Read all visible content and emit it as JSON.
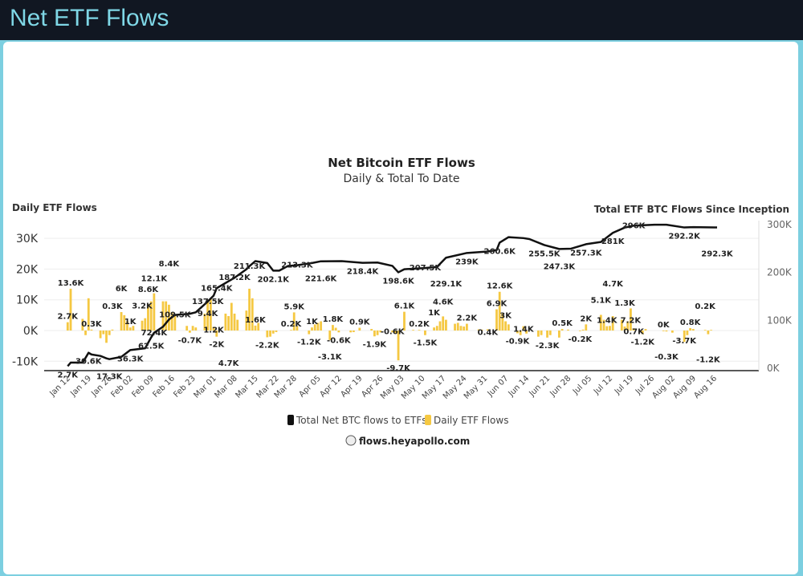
{
  "header": {
    "title": "Net ETF Flows"
  },
  "chart_data": {
    "type": "bar+line",
    "title": "Net Bitcoin ETF Flows",
    "subtitle": "Daily & Total To Date",
    "ylabel_left": "Daily ETF Flows",
    "ylabel_right": "Total ETF BTC Flows Since Inception",
    "ylim_left": [
      -10,
      30
    ],
    "ylim_right": [
      0,
      300
    ],
    "yticks_left": [
      "-10K",
      "0K",
      "10K",
      "20K",
      "30K"
    ],
    "yticks_right": [
      "0K",
      "100K",
      "200K",
      "300K"
    ],
    "xticks": [
      "Jan 12",
      "Jan 19",
      "Jan 26",
      "Feb 02",
      "Feb 09",
      "Feb 16",
      "Feb 23",
      "Mar 01",
      "Mar 08",
      "Mar 15",
      "Mar 22",
      "Mar 28",
      "Apr 05",
      "Apr 12",
      "Apr 19",
      "Apr 26",
      "May 03",
      "May 10",
      "May 17",
      "May 24",
      "May 31",
      "Jun 07",
      "Jun 14",
      "Jun 21",
      "Jun 28",
      "Jul 05",
      "Jul 12",
      "Jul 19",
      "Jul 26",
      "Aug 02",
      "Aug 09",
      "Aug 16"
    ],
    "grid": true,
    "legend_position": "bottom",
    "colors": {
      "total": "#111111",
      "daily": "#f5c842"
    },
    "series": [
      {
        "name": "Total Net BTC flows to ETFs",
        "unit": "K BTC",
        "points": [
          [
            "2024-01-11",
            2.7
          ],
          [
            "2024-01-12",
            10
          ],
          [
            "2024-01-16",
            10
          ],
          [
            "2024-01-17",
            20
          ],
          [
            "2024-01-18",
            30.6
          ],
          [
            "2024-01-19",
            27
          ],
          [
            "2024-01-22",
            24
          ],
          [
            "2024-01-24",
            19
          ],
          [
            "2024-01-25",
            17.3
          ],
          [
            "2024-01-29",
            22
          ],
          [
            "2024-02-01",
            36.3
          ],
          [
            "2024-02-06",
            40
          ],
          [
            "2024-02-08",
            62.5
          ],
          [
            "2024-02-09",
            72.4
          ],
          [
            "2024-02-12",
            85
          ],
          [
            "2024-02-14",
            100
          ],
          [
            "2024-02-16",
            109.5
          ],
          [
            "2024-02-21",
            112
          ],
          [
            "2024-02-23",
            115
          ],
          [
            "2024-02-27",
            137.5
          ],
          [
            "2024-02-29",
            150
          ],
          [
            "2024-03-01",
            165.4
          ],
          [
            "2024-03-05",
            180
          ],
          [
            "2024-03-07",
            187.2
          ],
          [
            "2024-03-11",
            205
          ],
          [
            "2024-03-12",
            211.3
          ],
          [
            "2024-03-14",
            222
          ],
          [
            "2024-03-18",
            218
          ],
          [
            "2024-03-20",
            202.1
          ],
          [
            "2024-03-22",
            202
          ],
          [
            "2024-03-25",
            212
          ],
          [
            "2024-03-28",
            213.3
          ],
          [
            "2024-04-02",
            218
          ],
          [
            "2024-04-05",
            221.6
          ],
          [
            "2024-04-12",
            222
          ],
          [
            "2024-04-19",
            218.4
          ],
          [
            "2024-04-24",
            219
          ],
          [
            "2024-04-29",
            212
          ],
          [
            "2024-05-01",
            198.6
          ],
          [
            "2024-05-03",
            205
          ],
          [
            "2024-05-10",
            207.5
          ],
          [
            "2024-05-14",
            210
          ],
          [
            "2024-05-17",
            229.1
          ],
          [
            "2024-05-24",
            239
          ],
          [
            "2024-05-31",
            242
          ],
          [
            "2024-06-03",
            245
          ],
          [
            "2024-06-04",
            260.6
          ],
          [
            "2024-06-07",
            272
          ],
          [
            "2024-06-12",
            270
          ],
          [
            "2024-06-14",
            268
          ],
          [
            "2024-06-19",
            255.5
          ],
          [
            "2024-06-24",
            247.3
          ],
          [
            "2024-06-28",
            248
          ],
          [
            "2024-07-03",
            257.3
          ],
          [
            "2024-07-08",
            262
          ],
          [
            "2024-07-12",
            281
          ],
          [
            "2024-07-16",
            292
          ],
          [
            "2024-07-19",
            296
          ],
          [
            "2024-07-26",
            298
          ],
          [
            "2024-07-30",
            298
          ],
          [
            "2024-08-05",
            292.2
          ],
          [
            "2024-08-08",
            293
          ],
          [
            "2024-08-16",
            292.3
          ]
        ]
      },
      {
        "name": "Daily ETF Flows",
        "unit": "K BTC",
        "points": [
          [
            "2024-01-11",
            2.7
          ],
          [
            "2024-01-12",
            13.6
          ],
          [
            "2024-01-16",
            3.8
          ],
          [
            "2024-01-17",
            -1.5
          ],
          [
            "2024-01-18",
            10.5
          ],
          [
            "2024-01-19",
            0.3
          ],
          [
            "2024-01-22",
            -2.5
          ],
          [
            "2024-01-23",
            -1.2
          ],
          [
            "2024-01-24",
            -4
          ],
          [
            "2024-01-25",
            -1.5
          ],
          [
            "2024-01-26",
            0.3
          ],
          [
            "2024-01-29",
            6
          ],
          [
            "2024-01-30",
            5
          ],
          [
            "2024-01-31",
            3
          ],
          [
            "2024-02-01",
            1
          ],
          [
            "2024-02-02",
            1.5
          ],
          [
            "2024-02-05",
            3.2
          ],
          [
            "2024-02-06",
            4
          ],
          [
            "2024-02-07",
            8.6
          ],
          [
            "2024-02-08",
            9.5
          ],
          [
            "2024-02-09",
            12.1
          ],
          [
            "2024-02-12",
            9.5
          ],
          [
            "2024-02-13",
            9.5
          ],
          [
            "2024-02-14",
            8.4
          ],
          [
            "2024-02-15",
            6
          ],
          [
            "2024-02-16",
            5
          ],
          [
            "2024-02-20",
            1.5
          ],
          [
            "2024-02-21",
            -0.7
          ],
          [
            "2024-02-22",
            1.5
          ],
          [
            "2024-02-23",
            1
          ],
          [
            "2024-02-26",
            5.5
          ],
          [
            "2024-02-27",
            9.4
          ],
          [
            "2024-02-28",
            10.5
          ],
          [
            "2024-02-29",
            1.2
          ],
          [
            "2024-03-01",
            -2
          ],
          [
            "2024-03-04",
            5.5
          ],
          [
            "2024-03-05",
            4.7
          ],
          [
            "2024-03-06",
            9
          ],
          [
            "2024-03-07",
            5.5
          ],
          [
            "2024-03-08",
            3.5
          ],
          [
            "2024-03-11",
            6.5
          ],
          [
            "2024-03-12",
            13.6
          ],
          [
            "2024-03-13",
            10.5
          ],
          [
            "2024-03-14",
            1.6
          ],
          [
            "2024-03-15",
            2.5
          ],
          [
            "2024-03-18",
            -2.2
          ],
          [
            "2024-03-19",
            -2
          ],
          [
            "2024-03-20",
            -1
          ],
          [
            "2024-03-21",
            -0.5
          ],
          [
            "2024-03-26",
            0.2
          ],
          [
            "2024-03-27",
            5.9
          ],
          [
            "2024-03-28",
            1.5
          ],
          [
            "2024-04-01",
            -1.2
          ],
          [
            "2024-04-02",
            1
          ],
          [
            "2024-04-03",
            2
          ],
          [
            "2024-04-04",
            2.5
          ],
          [
            "2024-04-05",
            3
          ],
          [
            "2024-04-08",
            -3.1
          ],
          [
            "2024-04-09",
            1.8
          ],
          [
            "2024-04-10",
            0.9
          ],
          [
            "2024-04-11",
            -0.6
          ],
          [
            "2024-04-15",
            -0.6
          ],
          [
            "2024-04-16",
            -0.5
          ],
          [
            "2024-04-18",
            0.9
          ],
          [
            "2024-04-22",
            0.5
          ],
          [
            "2024-04-23",
            -1.9
          ],
          [
            "2024-04-24",
            -1.5
          ],
          [
            "2024-04-25",
            -0.6
          ],
          [
            "2024-04-29",
            -0.6
          ],
          [
            "2024-04-30",
            -1
          ],
          [
            "2024-05-01",
            -9.7
          ],
          [
            "2024-05-03",
            6.1
          ],
          [
            "2024-05-06",
            0.2
          ],
          [
            "2024-05-08",
            0.2
          ],
          [
            "2024-05-10",
            -1.5
          ],
          [
            "2024-05-13",
            1
          ],
          [
            "2024-05-14",
            1.5
          ],
          [
            "2024-05-15",
            3
          ],
          [
            "2024-05-16",
            4.6
          ],
          [
            "2024-05-17",
            3.5
          ],
          [
            "2024-05-20",
            2.2
          ],
          [
            "2024-05-21",
            2.5
          ],
          [
            "2024-05-22",
            1.5
          ],
          [
            "2024-05-23",
            1.3
          ],
          [
            "2024-05-24",
            2.2
          ],
          [
            "2024-05-28",
            0.4
          ],
          [
            "2024-05-29",
            0.3
          ],
          [
            "2024-05-31",
            0.4
          ],
          [
            "2024-06-03",
            6.9
          ],
          [
            "2024-06-04",
            12.6
          ],
          [
            "2024-06-05",
            5.5
          ],
          [
            "2024-06-06",
            3
          ],
          [
            "2024-06-07",
            2
          ],
          [
            "2024-06-10",
            -0.9
          ],
          [
            "2024-06-11",
            -1.5
          ],
          [
            "2024-06-12",
            1.4
          ],
          [
            "2024-06-13",
            -1
          ],
          [
            "2024-06-17",
            -2
          ],
          [
            "2024-06-18",
            -1.5
          ],
          [
            "2024-06-20",
            -2.3
          ],
          [
            "2024-06-21",
            -1.5
          ],
          [
            "2024-06-24",
            -2.3
          ],
          [
            "2024-06-25",
            0.5
          ],
          [
            "2024-06-27",
            0.3
          ],
          [
            "2024-07-01",
            -0.2
          ],
          [
            "2024-07-02",
            0.3
          ],
          [
            "2024-07-03",
            2
          ],
          [
            "2024-07-08",
            5.1
          ],
          [
            "2024-07-09",
            3.5
          ],
          [
            "2024-07-10",
            1.4
          ],
          [
            "2024-07-11",
            1.5
          ],
          [
            "2024-07-12",
            4.7
          ],
          [
            "2024-07-15",
            3.5
          ],
          [
            "2024-07-16",
            1.3
          ],
          [
            "2024-07-17",
            3
          ],
          [
            "2024-07-18",
            7.2
          ],
          [
            "2024-07-19",
            0.7
          ],
          [
            "2024-07-22",
            -1.2
          ],
          [
            "2024-07-23",
            0.5
          ],
          [
            "2024-07-29",
            0
          ],
          [
            "2024-07-30",
            -0.3
          ],
          [
            "2024-08-01",
            -0.7
          ],
          [
            "2024-08-05",
            -3.7
          ],
          [
            "2024-08-06",
            -1.5
          ],
          [
            "2024-08-07",
            0.8
          ],
          [
            "2024-08-08",
            0.5
          ],
          [
            "2024-08-12",
            0.2
          ],
          [
            "2024-08-13",
            -1.2
          ],
          [
            "2024-08-14",
            0.2
          ]
        ]
      }
    ],
    "labels_total": [
      [
        "2024-01-11",
        "2.7K"
      ],
      [
        "2024-01-18",
        "30.6K"
      ],
      [
        "2024-01-25",
        "17.3K"
      ],
      [
        "2024-02-01",
        "36.3K"
      ],
      [
        "2024-02-08",
        "62.5K"
      ],
      [
        "2024-02-09",
        "72.4K"
      ],
      [
        "2024-02-16",
        "109.5K"
      ],
      [
        "2024-02-27",
        "137.5K"
      ],
      [
        "2024-03-01",
        "165.4K"
      ],
      [
        "2024-03-07",
        "187.2K"
      ],
      [
        "2024-03-12",
        "211.3K"
      ],
      [
        "2024-03-20",
        "202.1K"
      ],
      [
        "2024-03-28",
        "213.3K"
      ],
      [
        "2024-04-05",
        "221.6K"
      ],
      [
        "2024-04-19",
        "218.4K"
      ],
      [
        "2024-05-01",
        "198.6K"
      ],
      [
        "2024-05-10",
        "207.5K"
      ],
      [
        "2024-05-17",
        "229.1K"
      ],
      [
        "2024-05-24",
        "239K"
      ],
      [
        "2024-06-04",
        "260.6K"
      ],
      [
        "2024-06-19",
        "255.5K"
      ],
      [
        "2024-06-24",
        "247.3K"
      ],
      [
        "2024-07-03",
        "257.3K"
      ],
      [
        "2024-07-12",
        "281K"
      ],
      [
        "2024-07-19",
        "296K"
      ],
      [
        "2024-08-05",
        "292.2K"
      ],
      [
        "2024-08-16",
        "292.3K"
      ]
    ],
    "labels_daily": [
      [
        "2024-01-11",
        "2.7K"
      ],
      [
        "2024-01-12",
        "13.6K"
      ],
      [
        "2024-01-19",
        "0.3K"
      ],
      [
        "2024-01-26",
        "0.3K"
      ],
      [
        "2024-01-29",
        "6K"
      ],
      [
        "2024-02-01",
        "1K"
      ],
      [
        "2024-02-05",
        "3.2K"
      ],
      [
        "2024-02-07",
        "8.6K"
      ],
      [
        "2024-02-09",
        "12.1K"
      ],
      [
        "2024-02-14",
        "8.4K"
      ],
      [
        "2024-02-21",
        "-0.7K"
      ],
      [
        "2024-02-27",
        "9.4K"
      ],
      [
        "2024-02-29",
        "1.2K"
      ],
      [
        "2024-03-01",
        "-2K"
      ],
      [
        "2024-03-05",
        "4.7K"
      ],
      [
        "2024-03-14",
        "1.6K"
      ],
      [
        "2024-03-18",
        "-2.2K"
      ],
      [
        "2024-03-26",
        "0.2K"
      ],
      [
        "2024-03-27",
        "5.9K"
      ],
      [
        "2024-04-01",
        "-1.2K"
      ],
      [
        "2024-04-02",
        "1K"
      ],
      [
        "2024-04-08",
        "-3.1K"
      ],
      [
        "2024-04-09",
        "1.8K"
      ],
      [
        "2024-04-11",
        "-0.6K"
      ],
      [
        "2024-04-18",
        "0.9K"
      ],
      [
        "2024-04-23",
        "-1.9K"
      ],
      [
        "2024-04-29",
        "-0.6K"
      ],
      [
        "2024-05-01",
        "-9.7K"
      ],
      [
        "2024-05-03",
        "6.1K"
      ],
      [
        "2024-05-08",
        "0.2K"
      ],
      [
        "2024-05-10",
        "-1.5K"
      ],
      [
        "2024-05-13",
        "1K"
      ],
      [
        "2024-05-16",
        "4.6K"
      ],
      [
        "2024-05-24",
        "2.2K"
      ],
      [
        "2024-05-31",
        "0.4K"
      ],
      [
        "2024-06-03",
        "6.9K"
      ],
      [
        "2024-06-04",
        "12.6K"
      ],
      [
        "2024-06-06",
        "3K"
      ],
      [
        "2024-06-10",
        "-0.9K"
      ],
      [
        "2024-06-12",
        "1.4K"
      ],
      [
        "2024-06-20",
        "-2.3K"
      ],
      [
        "2024-06-25",
        "0.5K"
      ],
      [
        "2024-07-01",
        "-0.2K"
      ],
      [
        "2024-07-03",
        "2K"
      ],
      [
        "2024-07-08",
        "5.1K"
      ],
      [
        "2024-07-10",
        "1.4K"
      ],
      [
        "2024-07-12",
        "4.7K"
      ],
      [
        "2024-07-16",
        "1.3K"
      ],
      [
        "2024-07-18",
        "7.2K"
      ],
      [
        "2024-07-19",
        "0.7K"
      ],
      [
        "2024-07-22",
        "-1.2K"
      ],
      [
        "2024-07-29",
        "0K"
      ],
      [
        "2024-07-30",
        "-0.3K"
      ],
      [
        "2024-08-05",
        "-3.7K"
      ],
      [
        "2024-08-07",
        "0.8K"
      ],
      [
        "2024-08-12",
        "0.2K"
      ],
      [
        "2024-08-13",
        "-1.2K"
      ]
    ]
  },
  "legend": {
    "total": "Total Net BTC flows to ETFs",
    "daily": "Daily ETF Flows"
  },
  "footer": {
    "source": "flows.heyapollo.com"
  }
}
